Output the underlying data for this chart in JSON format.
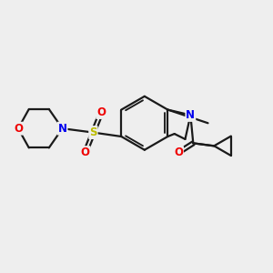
{
  "bg_color": "#eeeeee",
  "bond_color": "#1a1a1a",
  "bond_width": 1.6,
  "atom_colors": {
    "N": "#0000ee",
    "O": "#ee0000",
    "S": "#bbbb00",
    "C": "#1a1a1a"
  },
  "font_size": 8.5,
  "figsize": [
    3.0,
    3.0
  ],
  "dpi": 100
}
